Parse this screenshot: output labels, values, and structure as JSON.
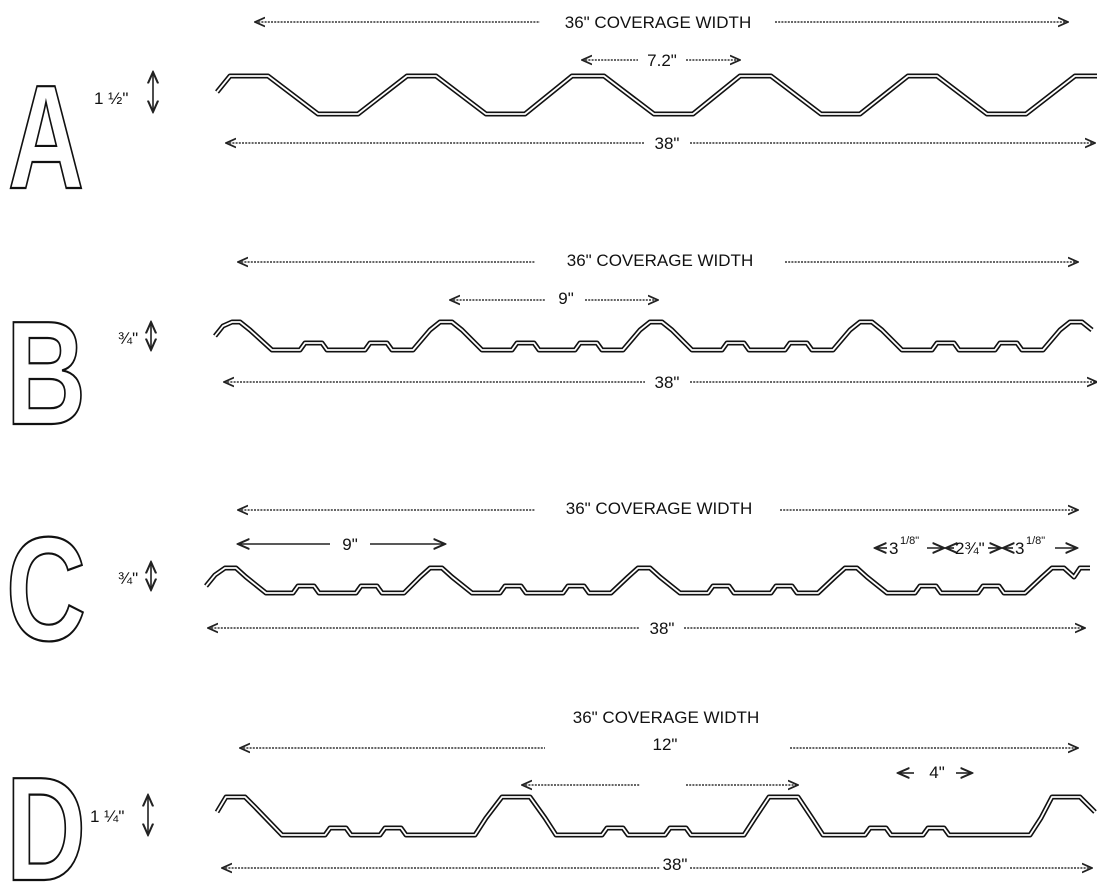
{
  "panels": [
    {
      "letter": "A",
      "coverage_label": "36\" COVERAGE WIDTH",
      "height_label": "1 ½\"",
      "width_label": "38\"",
      "pitch_label": "7.2\""
    },
    {
      "letter": "B",
      "coverage_label": "36\" COVERAGE WIDTH",
      "height_label": "¾\"",
      "width_label": "38\"",
      "pitch_label": "9\""
    },
    {
      "letter": "C",
      "coverage_label": "36\" COVERAGE WIDTH",
      "height_label": "¾\"",
      "width_label": "38\"",
      "pitch_label": "9\"",
      "segments": {
        "first": "3",
        "first_sup": "1/8\"",
        "middle": "2¾\"",
        "last": "3",
        "last_sup": "1/8\""
      }
    },
    {
      "letter": "D",
      "coverage_label": "36\" COVERAGE WIDTH",
      "height_label": "1 ¼\"",
      "width_label": "38\"",
      "pitch_label": "12\"",
      "rib_label": "4\""
    }
  ]
}
